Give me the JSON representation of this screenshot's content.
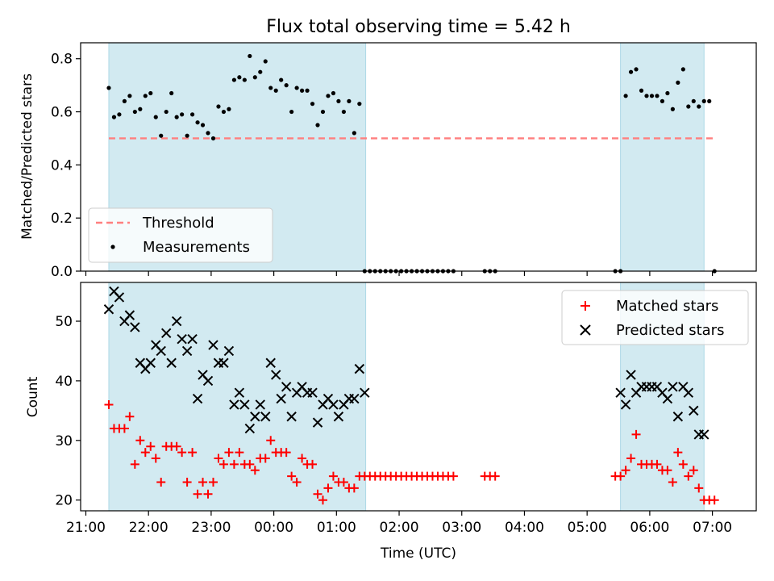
{
  "figure_title": "Flux total observing time = 5.42 h",
  "colors": {
    "shade": "#add8e6",
    "threshold": "#ff7f7f",
    "measurement": "#000000",
    "matched": "#ff0000",
    "predicted": "#000000"
  },
  "chart_data": [
    {
      "type": "scatter",
      "panel": "top",
      "title": "Flux total observing time = 5.42 h",
      "ylabel": "Matched/Predicted stars",
      "xlabel": "",
      "ylim": [
        0,
        0.86
      ],
      "yticks": [
        0.0,
        0.2,
        0.4,
        0.6,
        0.8
      ],
      "ytick_labels": [
        "0.0",
        "0.2",
        "0.4",
        "0.6",
        "0.8"
      ],
      "shaded_spans": [
        [
          "21:22",
          "01:28"
        ],
        [
          "05:32",
          "06:52"
        ]
      ],
      "legend": {
        "position": "lower-left",
        "entries": [
          "Threshold",
          "Measurements"
        ]
      },
      "threshold": {
        "name": "Threshold",
        "value": 0.5,
        "x_start": "21:22",
        "x_end": "07:02"
      },
      "series": [
        {
          "name": "Measurements",
          "marker": "dot",
          "x": [
            "21:22",
            "21:27",
            "21:32",
            "21:37",
            "21:42",
            "21:47",
            "21:52",
            "21:57",
            "22:02",
            "22:07",
            "22:12",
            "22:17",
            "22:22",
            "22:27",
            "22:32",
            "22:37",
            "22:42",
            "22:47",
            "22:52",
            "22:57",
            "23:02",
            "23:07",
            "23:12",
            "23:17",
            "23:22",
            "23:27",
            "23:32",
            "23:37",
            "23:42",
            "23:47",
            "23:52",
            "23:57",
            "00:02",
            "00:07",
            "00:12",
            "00:17",
            "00:22",
            "00:27",
            "00:32",
            "00:37",
            "00:42",
            "00:47",
            "00:52",
            "00:57",
            "01:02",
            "01:07",
            "01:12",
            "01:17",
            "01:22",
            "01:27",
            "01:32",
            "01:37",
            "01:42",
            "01:47",
            "01:52",
            "01:57",
            "02:02",
            "02:07",
            "02:12",
            "02:17",
            "02:22",
            "02:27",
            "02:32",
            "02:37",
            "02:42",
            "02:47",
            "02:52",
            "03:22",
            "03:27",
            "03:32",
            "05:27",
            "05:32",
            "05:37",
            "05:42",
            "05:47",
            "05:52",
            "05:57",
            "06:02",
            "06:07",
            "06:12",
            "06:17",
            "06:22",
            "06:27",
            "06:32",
            "06:37",
            "06:42",
            "06:47",
            "06:52",
            "06:57",
            "07:02"
          ],
          "y": [
            0.69,
            0.58,
            0.59,
            0.64,
            0.66,
            0.6,
            0.61,
            0.66,
            0.67,
            0.58,
            0.51,
            0.6,
            0.67,
            0.58,
            0.59,
            0.51,
            0.59,
            0.56,
            0.55,
            0.52,
            0.5,
            0.62,
            0.6,
            0.61,
            0.72,
            0.73,
            0.72,
            0.81,
            0.73,
            0.75,
            0.79,
            0.69,
            0.68,
            0.72,
            0.7,
            0.6,
            0.69,
            0.68,
            0.68,
            0.63,
            0.55,
            0.6,
            0.66,
            0.67,
            0.64,
            0.6,
            0.64,
            0.52,
            0.63,
            0.0,
            0.0,
            0.0,
            0.0,
            0.0,
            0.0,
            0.0,
            0.0,
            0.0,
            0.0,
            0.0,
            0.0,
            0.0,
            0.0,
            0.0,
            0.0,
            0.0,
            0.0,
            0.0,
            0.0,
            0.0,
            0.0,
            0.0,
            0.66,
            0.75,
            0.76,
            0.68,
            0.66,
            0.66,
            0.66,
            0.64,
            0.67,
            0.61,
            0.71,
            0.76,
            0.62,
            0.64,
            0.62,
            0.64,
            0.64,
            0.0
          ]
        }
      ]
    },
    {
      "type": "scatter",
      "panel": "bottom",
      "ylabel": "Count",
      "xlabel": "Time (UTC)",
      "ylim": [
        18.2,
        56.5
      ],
      "yticks": [
        20,
        30,
        40,
        50
      ],
      "ytick_labels": [
        "20",
        "30",
        "40",
        "50"
      ],
      "xlim": [
        "20:55",
        "07:42"
      ],
      "xtick_labels": [
        "21:00",
        "22:00",
        "23:00",
        "00:00",
        "01:00",
        "02:00",
        "03:00",
        "04:00",
        "05:00",
        "06:00",
        "07:00"
      ],
      "shaded_spans": [
        [
          "21:22",
          "01:28"
        ],
        [
          "05:32",
          "06:52"
        ]
      ],
      "legend": {
        "position": "top-right",
        "entries": [
          "Matched stars",
          "Predicted stars"
        ]
      },
      "series": [
        {
          "name": "Matched stars",
          "marker": "plus",
          "x": [
            "21:22",
            "21:27",
            "21:32",
            "21:37",
            "21:42",
            "21:47",
            "21:52",
            "21:57",
            "22:02",
            "22:07",
            "22:12",
            "22:17",
            "22:22",
            "22:27",
            "22:32",
            "22:37",
            "22:42",
            "22:47",
            "22:52",
            "22:57",
            "23:02",
            "23:07",
            "23:12",
            "23:17",
            "23:22",
            "23:27",
            "23:32",
            "23:37",
            "23:42",
            "23:47",
            "23:52",
            "23:57",
            "00:02",
            "00:07",
            "00:12",
            "00:17",
            "00:22",
            "00:27",
            "00:32",
            "00:37",
            "00:42",
            "00:47",
            "00:52",
            "00:57",
            "01:02",
            "01:07",
            "01:12",
            "01:17",
            "01:22",
            "01:27",
            "01:32",
            "01:37",
            "01:42",
            "01:47",
            "01:52",
            "01:57",
            "02:02",
            "02:07",
            "02:12",
            "02:17",
            "02:22",
            "02:27",
            "02:32",
            "02:37",
            "02:42",
            "02:47",
            "02:52",
            "03:22",
            "03:27",
            "03:32",
            "05:27",
            "05:32",
            "05:37",
            "05:42",
            "05:47",
            "05:52",
            "05:57",
            "06:02",
            "06:07",
            "06:12",
            "06:17",
            "06:22",
            "06:27",
            "06:32",
            "06:37",
            "06:42",
            "06:47",
            "06:52",
            "06:57",
            "07:02"
          ],
          "y": [
            36,
            32,
            32,
            32,
            34,
            26,
            30,
            28,
            29,
            27,
            23,
            29,
            29,
            29,
            28,
            23,
            28,
            21,
            23,
            21,
            23,
            27,
            26,
            28,
            26,
            28,
            26,
            26,
            25,
            27,
            27,
            30,
            28,
            28,
            28,
            24,
            23,
            27,
            26,
            26,
            21,
            20,
            22,
            24,
            23,
            23,
            22,
            22,
            24,
            24,
            24,
            24,
            24,
            24,
            24,
            24,
            24,
            24,
            24,
            24,
            24,
            24,
            24,
            24,
            24,
            24,
            24,
            24,
            24,
            24,
            24,
            24,
            25,
            27,
            31,
            26,
            26,
            26,
            26,
            25,
            25,
            23,
            28,
            26,
            24,
            25,
            22,
            20,
            20,
            20
          ]
        },
        {
          "name": "Predicted stars",
          "marker": "x",
          "x": [
            "21:22",
            "21:27",
            "21:32",
            "21:37",
            "21:42",
            "21:47",
            "21:52",
            "21:57",
            "22:02",
            "22:07",
            "22:12",
            "22:17",
            "22:22",
            "22:27",
            "22:32",
            "22:37",
            "22:42",
            "22:47",
            "22:52",
            "22:57",
            "23:02",
            "23:07",
            "23:12",
            "23:17",
            "23:22",
            "23:27",
            "23:32",
            "23:37",
            "23:42",
            "23:47",
            "23:52",
            "23:57",
            "00:02",
            "00:07",
            "00:12",
            "00:17",
            "00:22",
            "00:27",
            "00:32",
            "00:37",
            "00:42",
            "00:47",
            "00:52",
            "00:57",
            "01:02",
            "01:07",
            "01:12",
            "01:17",
            "01:22",
            "01:27",
            "05:32",
            "05:37",
            "05:42",
            "05:47",
            "05:52",
            "05:57",
            "06:02",
            "06:07",
            "06:12",
            "06:17",
            "06:22",
            "06:27",
            "06:32",
            "06:37",
            "06:42",
            "06:47",
            "06:52"
          ],
          "y": [
            52,
            55,
            54,
            50,
            51,
            49,
            43,
            42,
            43,
            46,
            45,
            48,
            43,
            50,
            47,
            45,
            47,
            37,
            41,
            40,
            46,
            43,
            43,
            45,
            36,
            38,
            36,
            32,
            34,
            36,
            34,
            43,
            41,
            37,
            39,
            34,
            38,
            39,
            38,
            38,
            33,
            36,
            37,
            36,
            34,
            36,
            37,
            37,
            42,
            38,
            38,
            36,
            41,
            38,
            39,
            39,
            39,
            39,
            38,
            37,
            39,
            34,
            39,
            38,
            35,
            31,
            31
          ]
        }
      ]
    }
  ]
}
